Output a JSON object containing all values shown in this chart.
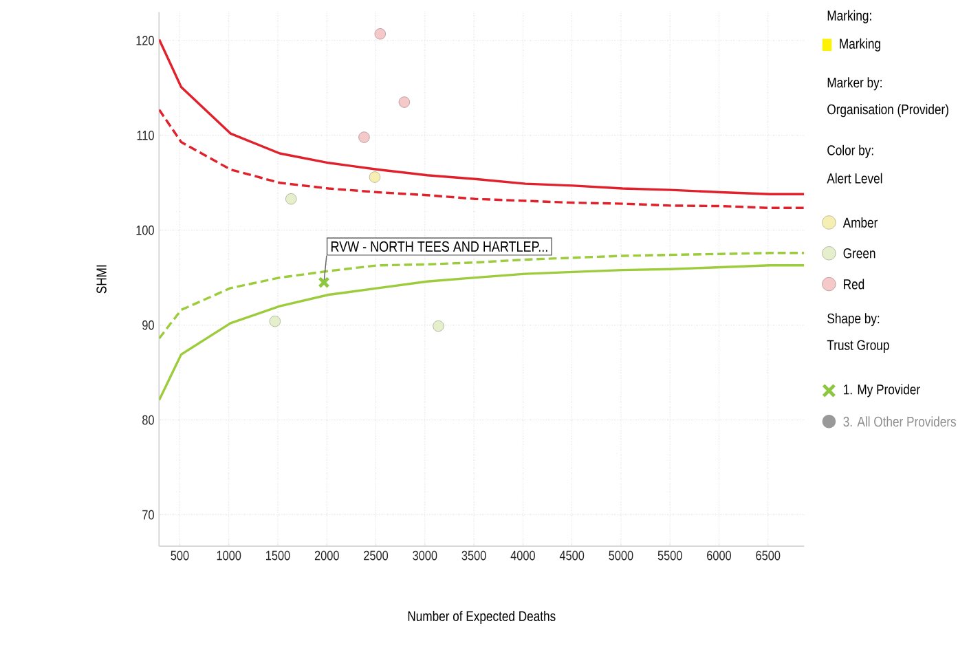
{
  "chart_data": {
    "type": "scatter",
    "xlabel": "Number of Expected Deaths",
    "ylabel": "SHMI",
    "xlim": [
      288,
      6869
    ],
    "ylim": [
      66.7,
      123
    ],
    "xticks": [
      500,
      1000,
      1500,
      2000,
      2500,
      3000,
      3500,
      4000,
      4500,
      5000,
      5500,
      6000,
      6500
    ],
    "yticks": [
      70,
      80,
      90,
      100,
      110,
      120
    ],
    "grid": true,
    "legend": "right",
    "series": [
      {
        "name": "Amber",
        "type": "scatter",
        "marker": "circle",
        "color": "#f6efb4",
        "x": [
          2489
        ],
        "values": [
          105.6
        ]
      },
      {
        "name": "Green",
        "type": "scatter",
        "marker": "circle",
        "color": "#e5efcb",
        "x": [
          1635,
          1471,
          3138
        ],
        "values": [
          103.3,
          90.4,
          89.9
        ]
      },
      {
        "name": "Red",
        "type": "scatter",
        "marker": "circle",
        "color": "#f5c8ca",
        "x": [
          2544,
          2790,
          2380
        ],
        "values": [
          120.7,
          113.5,
          109.8
        ]
      },
      {
        "name": "1. My Provider",
        "type": "scatter",
        "marker": "cross",
        "color": "#8dc63f",
        "x": [
          1970
        ],
        "values": [
          94.5
        ]
      },
      {
        "type": "line",
        "line_style": "solid",
        "color": "#e0202a",
        "x": [
          290,
          514,
          1017,
          1519,
          2018,
          2521,
          3022,
          3512,
          4024,
          4512,
          5015,
          5504,
          6018,
          6519,
          6869
        ],
        "values": [
          120.1,
          115.1,
          110.2,
          108.1,
          107.1,
          106.4,
          105.8,
          105.4,
          104.9,
          104.7,
          104.4,
          104.25,
          104.0,
          103.8,
          103.8
        ]
      },
      {
        "type": "line",
        "line_style": "dashed",
        "color": "#e0202a",
        "x": [
          290,
          514,
          1017,
          1519,
          2018,
          2521,
          3022,
          3512,
          4024,
          4512,
          5015,
          5504,
          6018,
          6519,
          6869
        ],
        "values": [
          112.7,
          109.3,
          106.4,
          105.0,
          104.4,
          104.0,
          103.7,
          103.3,
          103.1,
          102.9,
          102.8,
          102.6,
          102.55,
          102.35,
          102.35
        ]
      },
      {
        "type": "line",
        "line_style": "dashed",
        "color": "#9ccc3c",
        "x": [
          290,
          514,
          1017,
          1519,
          2018,
          2521,
          3022,
          3512,
          4024,
          4512,
          5015,
          5504,
          6018,
          6519,
          6869
        ],
        "values": [
          88.6,
          91.6,
          93.9,
          95.0,
          95.7,
          96.3,
          96.4,
          96.6,
          96.9,
          97.1,
          97.3,
          97.4,
          97.5,
          97.6,
          97.6
        ]
      },
      {
        "type": "line",
        "line_style": "solid",
        "color": "#9ccc3c",
        "x": [
          290,
          514,
          1017,
          1519,
          2018,
          2521,
          3022,
          3512,
          4024,
          4512,
          5015,
          5504,
          6018,
          6519,
          6869
        ],
        "values": [
          82.1,
          86.9,
          90.2,
          92.0,
          93.2,
          93.9,
          94.6,
          95.0,
          95.4,
          95.6,
          95.8,
          95.9,
          96.1,
          96.3,
          96.3
        ]
      }
    ],
    "annotations": [
      "Marking:",
      "Marking",
      "Marker by:",
      "Organisation (Provider)",
      "Color by:",
      "Alert Level",
      "Shape by:",
      "Trust Group",
      "3. All Other Providers",
      {
        "text": "RVW - NORTH TEES AND HARTLEP...",
        "x": 1970,
        "y": 94.5
      }
    ]
  }
}
